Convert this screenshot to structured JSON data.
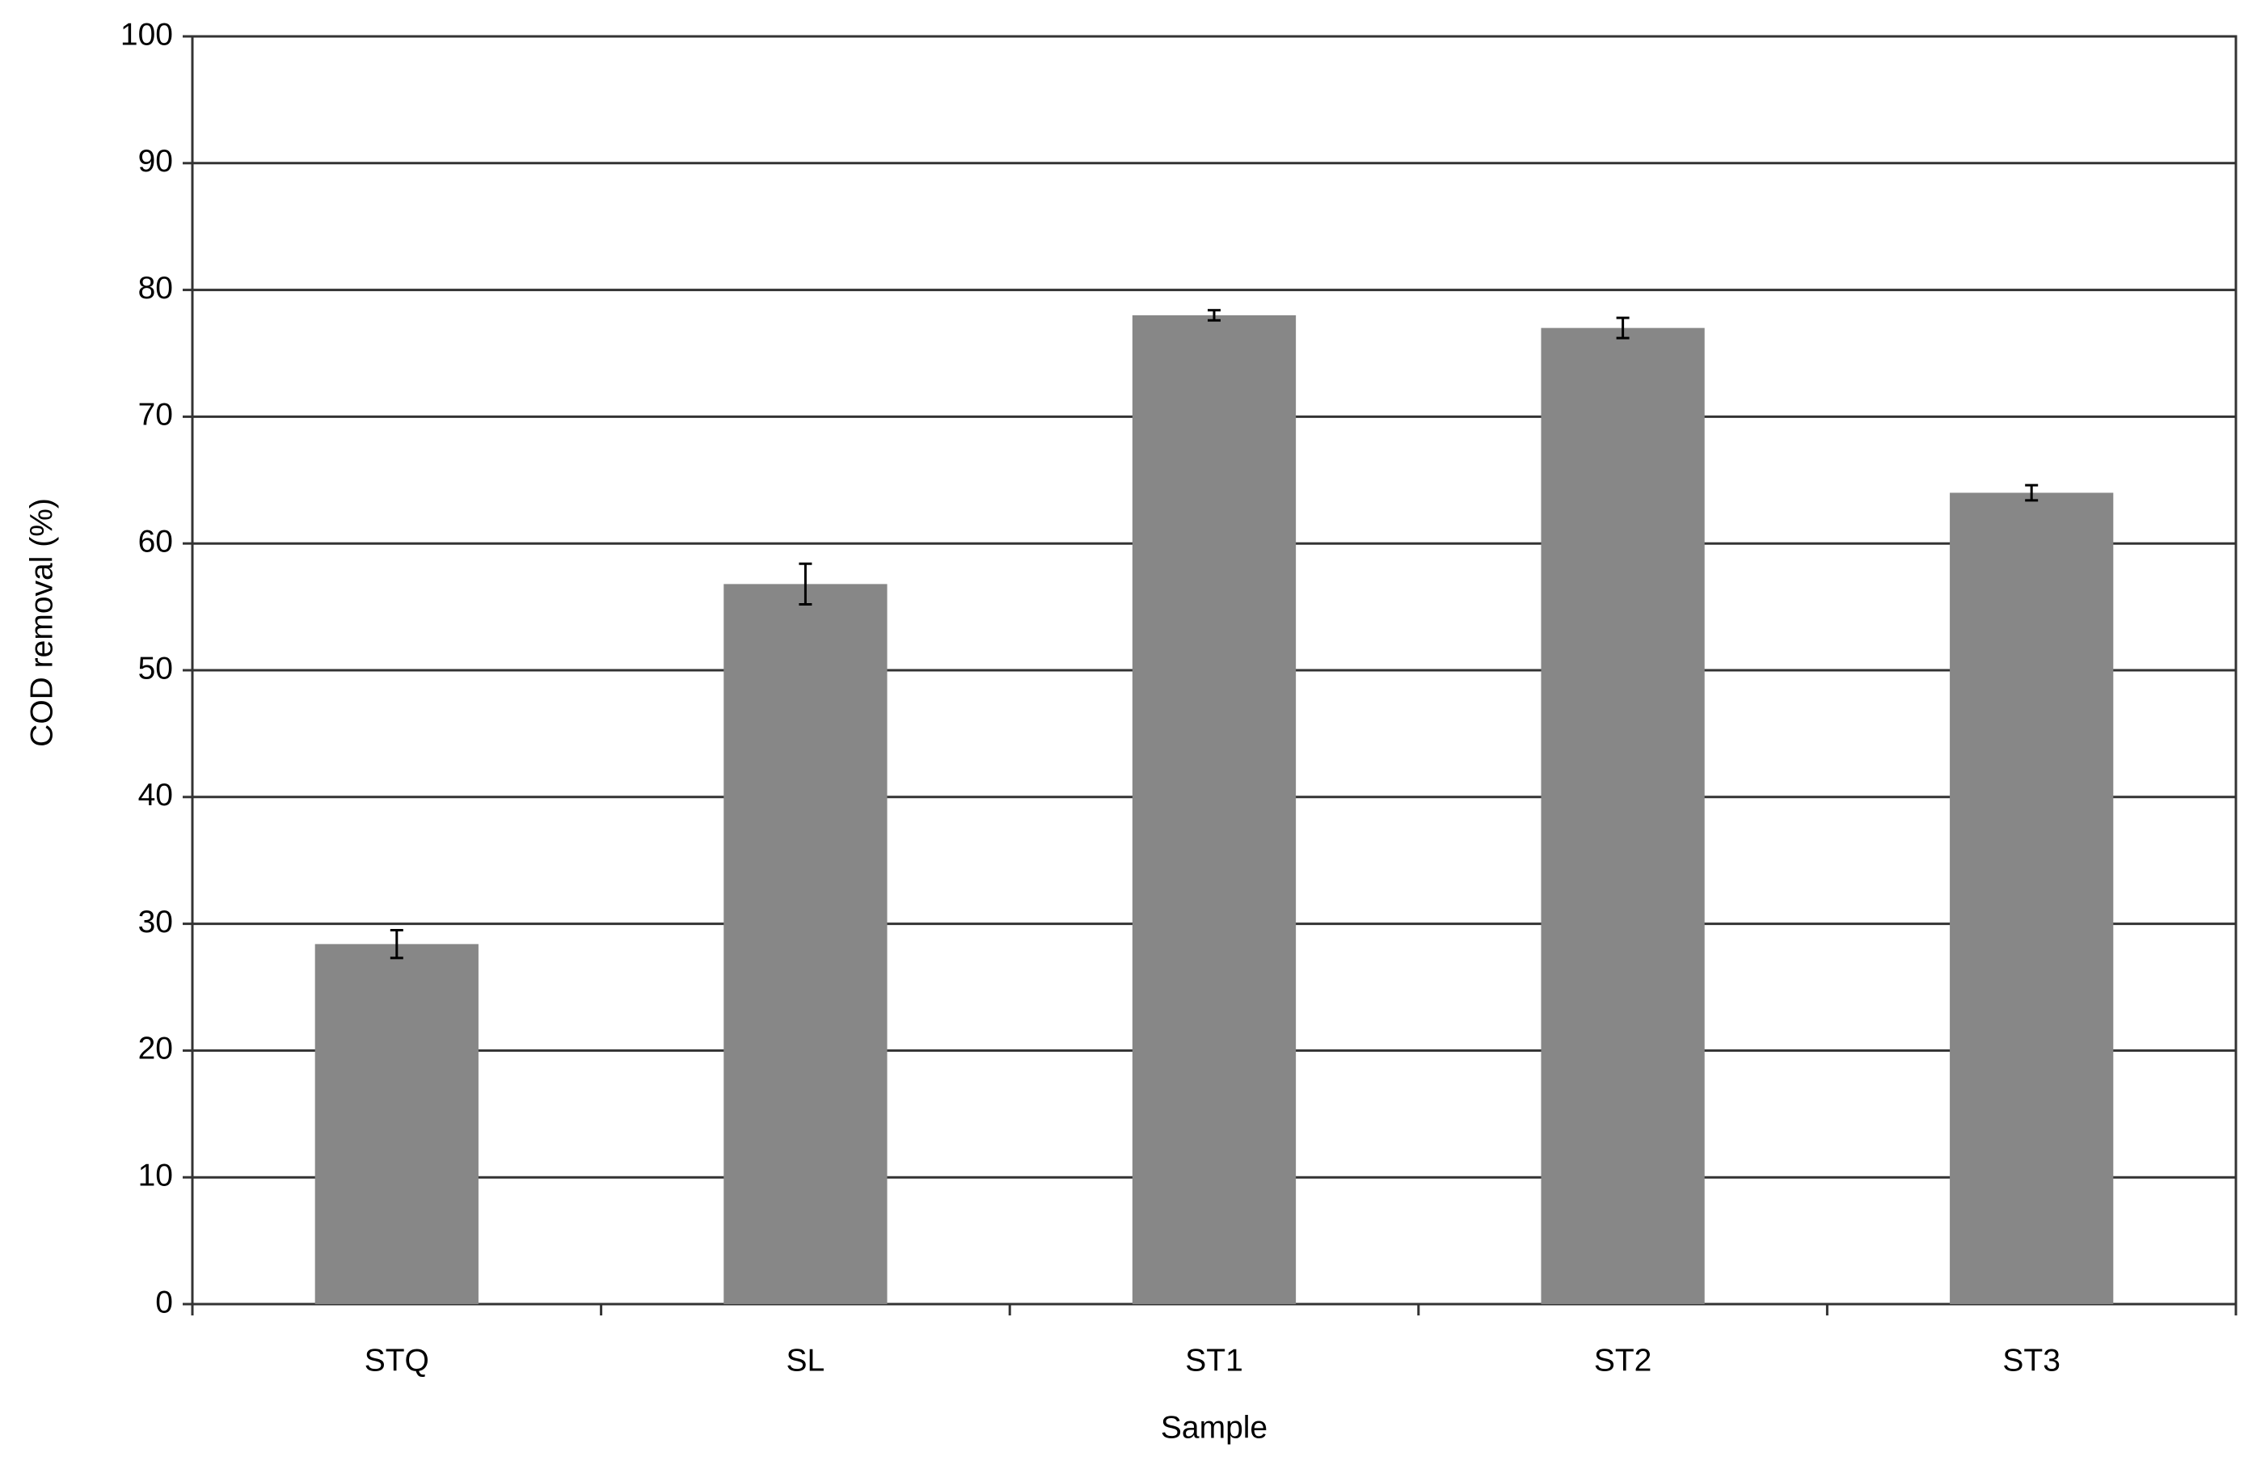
{
  "chart_data": {
    "type": "bar",
    "x_label": "Sample",
    "y_label": "COD removal (%)",
    "categories": [
      "STQ",
      "SL",
      "ST1",
      "ST2",
      "ST3"
    ],
    "values": [
      28.4,
      56.8,
      78.0,
      77.0,
      64.0
    ],
    "errors": [
      1.1,
      1.6,
      0.4,
      0.8,
      0.6
    ],
    "color": "#878787",
    "ylim": [
      0,
      100
    ],
    "yticks": [
      0,
      10,
      20,
      30,
      40,
      50,
      60,
      70,
      80,
      90,
      100
    ],
    "grid": true
  }
}
